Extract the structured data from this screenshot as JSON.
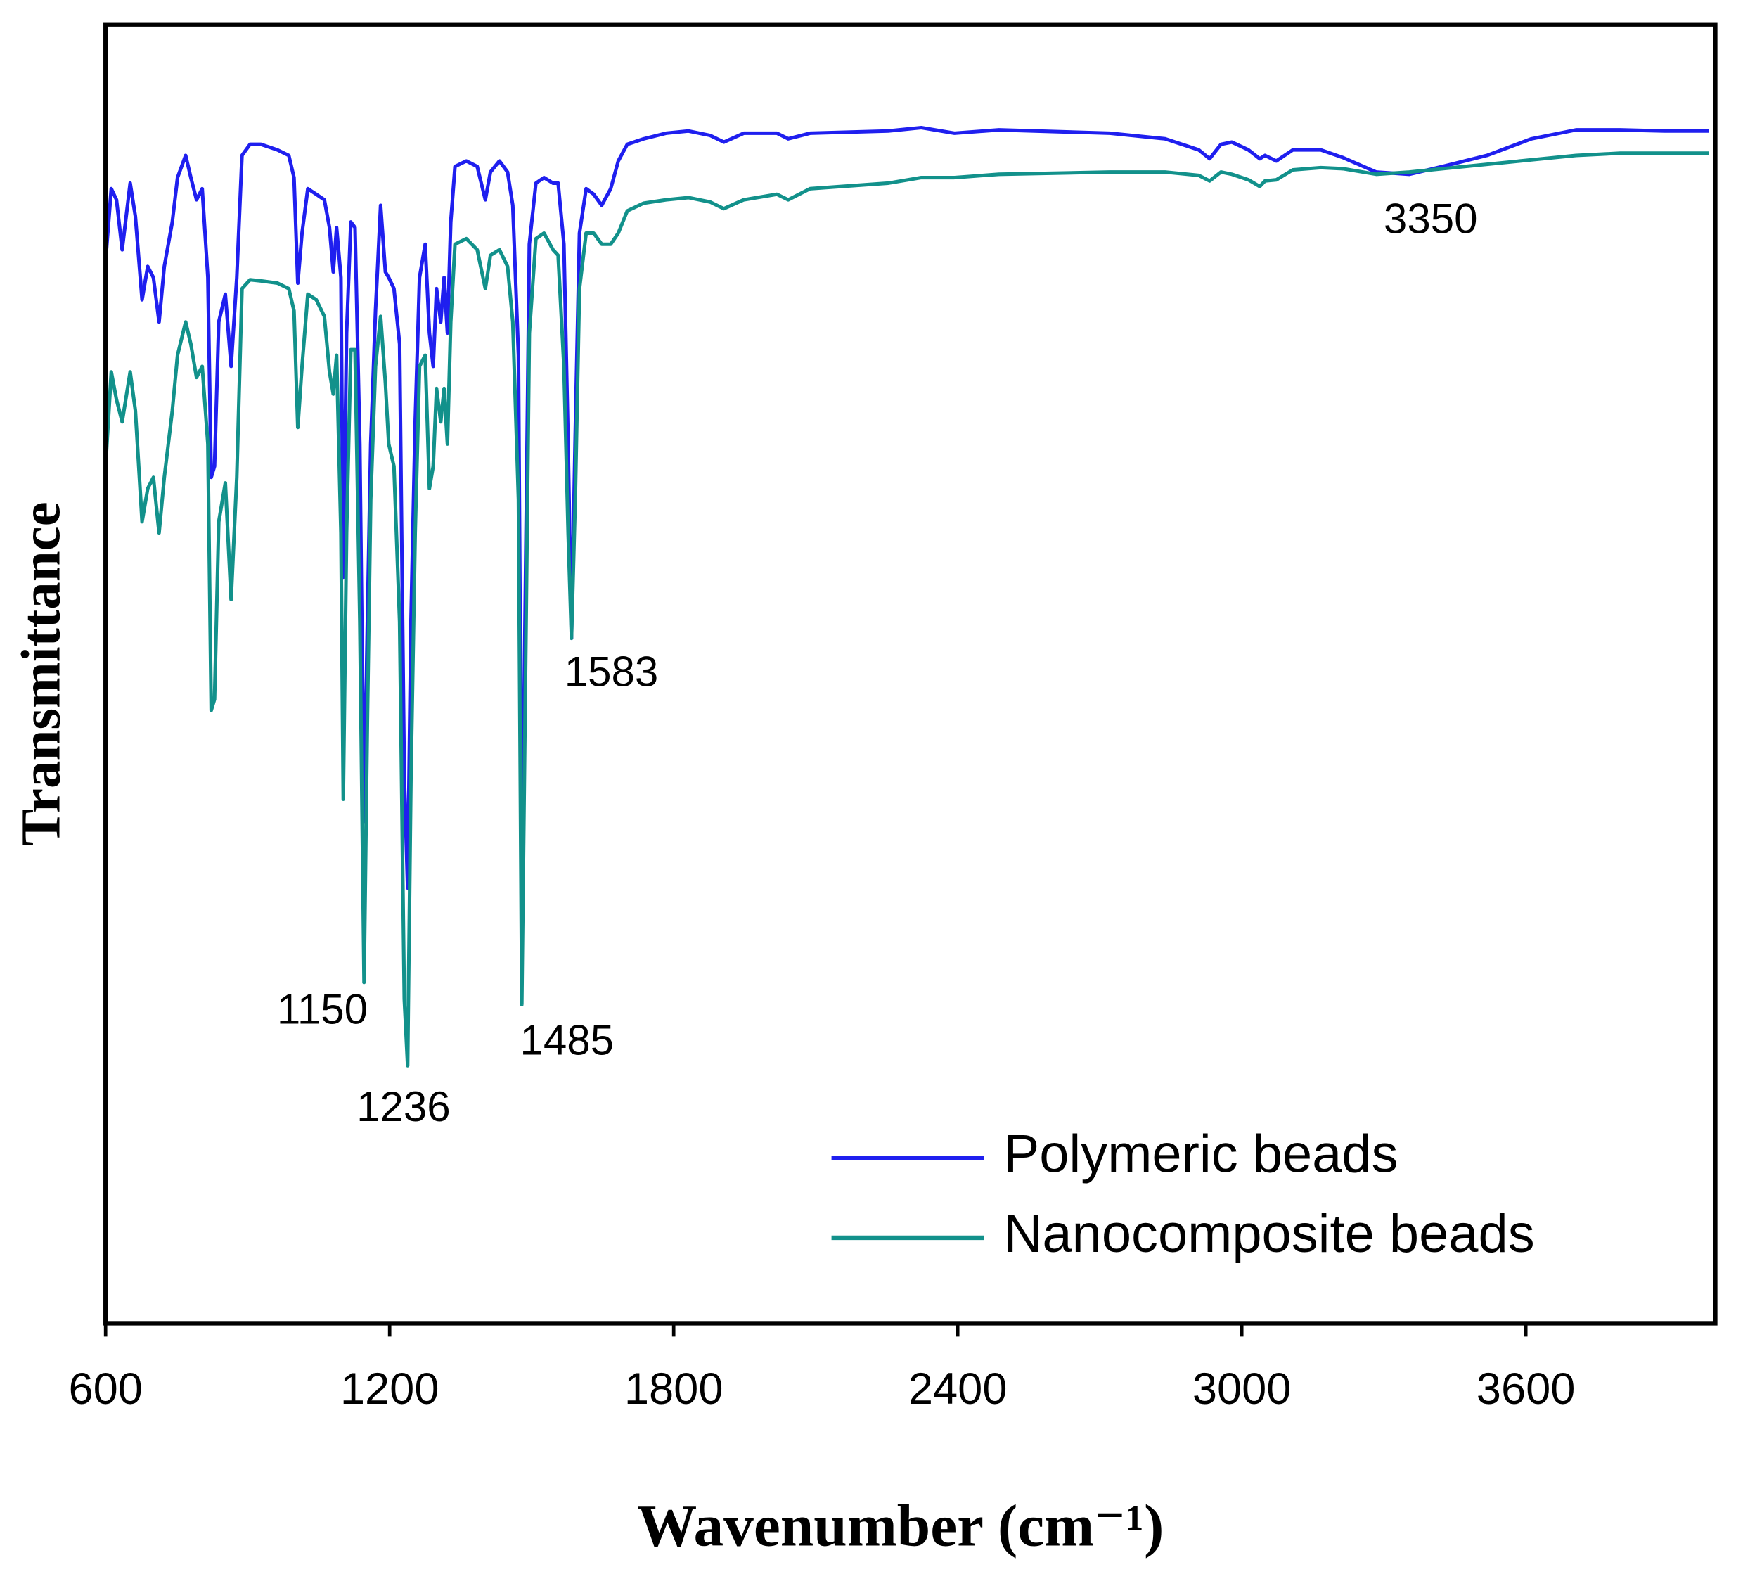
{
  "chart_data": {
    "type": "line",
    "x_label": "Wavenumber (cm⁻¹)",
    "y_label": "Transmittance",
    "xlim": [
      600,
      4000
    ],
    "xticks": [
      600,
      1200,
      1800,
      2400,
      3000,
      3600
    ],
    "ylim": [
      0,
      117
    ],
    "legend": "lower right",
    "annotations": [
      "1150",
      "1236",
      "1485",
      "1583",
      "3350"
    ],
    "x": [
      600,
      612,
      623,
      635,
      652,
      663,
      677,
      689,
      701,
      713,
      724,
      741,
      752,
      769,
      780,
      792,
      804,
      816,
      823,
      830,
      839,
      853,
      865,
      877,
      888,
      905,
      928,
      963,
      987,
      998,
      1006,
      1015,
      1027,
      1045,
      1062,
      1073,
      1081,
      1088,
      1097,
      1102,
      1109,
      1118,
      1127,
      1137,
      1146,
      1153,
      1160,
      1170,
      1181,
      1191,
      1198,
      1209,
      1221,
      1231,
      1238,
      1245,
      1254,
      1263,
      1275,
      1284,
      1292,
      1299,
      1308,
      1315,
      1322,
      1329,
      1338,
      1362,
      1385,
      1402,
      1413,
      1432,
      1449,
      1460,
      1472,
      1479,
      1486,
      1495,
      1509,
      1526,
      1545,
      1556,
      1568,
      1577,
      1584,
      1592,
      1601,
      1615,
      1631,
      1648,
      1667,
      1683,
      1702,
      1737,
      1784,
      1831,
      1877,
      1906,
      1948,
      2018,
      2042,
      2088,
      2253,
      2323,
      2393,
      2487,
      2721,
      2838,
      2909,
      2932,
      2956,
      2979,
      3014,
      3038,
      3049,
      3073,
      3108,
      3167,
      3214,
      3284,
      3354,
      3424,
      3518,
      3612,
      3706,
      3799,
      3893,
      3987
    ],
    "series": [
      {
        "name": "Polymeric beads",
        "color": "#1f1fef",
        "values": [
          95.7,
          102.2,
          101.2,
          96.7,
          102.7,
          99.7,
          92.2,
          95.2,
          94.2,
          90.2,
          95.2,
          99.2,
          103.2,
          105.2,
          103.2,
          101.2,
          102.2,
          94.2,
          76.2,
          77.2,
          90.2,
          92.7,
          86.2,
          94.2,
          105.2,
          106.2,
          106.2,
          105.7,
          105.2,
          103.2,
          93.7,
          98.2,
          102.2,
          101.7,
          101.2,
          98.7,
          94.7,
          98.7,
          94.2,
          67.2,
          89.2,
          99.2,
          98.7,
          79.2,
          45.2,
          63.2,
          79.2,
          91.2,
          100.7,
          94.7,
          94.2,
          93.2,
          88.2,
          49.2,
          39.2,
          63.2,
          81.2,
          94.2,
          97.2,
          89.2,
          86.2,
          93.2,
          90.2,
          94.2,
          89.2,
          99.2,
          104.2,
          104.7,
          104.2,
          101.2,
          103.7,
          104.7,
          103.7,
          100.7,
          87.2,
          39.2,
          63.2,
          97.2,
          102.7,
          103.2,
          102.7,
          102.7,
          97.2,
          79.2,
          61.7,
          80.2,
          98.2,
          102.2,
          101.7,
          100.7,
          102.2,
          104.7,
          106.2,
          106.7,
          107.2,
          107.4,
          107.0,
          106.4,
          107.2,
          107.2,
          106.7,
          107.2,
          107.4,
          107.7,
          107.2,
          107.5,
          107.2,
          106.7,
          105.7,
          104.9,
          106.2,
          106.4,
          105.7,
          104.9,
          105.2,
          104.7,
          105.7,
          105.7,
          105.0,
          103.7,
          103.5,
          104.2,
          105.2,
          106.7,
          107.5,
          107.5,
          107.4,
          107.4
        ]
      },
      {
        "name": "Nanocomposite beads",
        "color": "#12918b",
        "values": [
          77.2,
          85.7,
          83.2,
          81.2,
          85.7,
          82.2,
          72.2,
          75.2,
          76.2,
          71.2,
          76.2,
          82.2,
          87.2,
          90.2,
          88.2,
          85.2,
          86.2,
          79.2,
          55.2,
          56.2,
          72.2,
          75.7,
          65.2,
          76.2,
          93.2,
          94.0,
          93.9,
          93.7,
          93.2,
          91.2,
          80.7,
          86.2,
          92.7,
          92.2,
          90.7,
          85.7,
          83.7,
          87.2,
          71.2,
          47.2,
          71.2,
          87.7,
          87.7,
          63.2,
          30.7,
          54.2,
          74.2,
          86.2,
          90.7,
          84.7,
          79.2,
          77.2,
          63.2,
          29.2,
          23.2,
          49.2,
          71.2,
          86.2,
          87.2,
          75.2,
          77.2,
          84.2,
          81.2,
          84.2,
          79.2,
          90.2,
          97.2,
          97.7,
          96.7,
          93.2,
          96.2,
          96.7,
          95.2,
          90.2,
          74.2,
          28.7,
          54.2,
          89.2,
          97.7,
          98.2,
          96.7,
          96.2,
          86.2,
          71.2,
          61.7,
          74.2,
          93.2,
          98.2,
          98.2,
          97.2,
          97.2,
          98.2,
          100.2,
          100.9,
          101.2,
          101.4,
          101.0,
          100.4,
          101.2,
          101.7,
          101.2,
          102.2,
          102.7,
          103.2,
          103.2,
          103.5,
          103.7,
          103.7,
          103.4,
          102.9,
          103.7,
          103.5,
          103.0,
          102.4,
          102.9,
          103.0,
          103.9,
          104.1,
          104.0,
          103.5,
          103.7,
          104.0,
          104.4,
          104.8,
          105.2,
          105.4,
          105.4,
          105.4
        ]
      }
    ]
  }
}
